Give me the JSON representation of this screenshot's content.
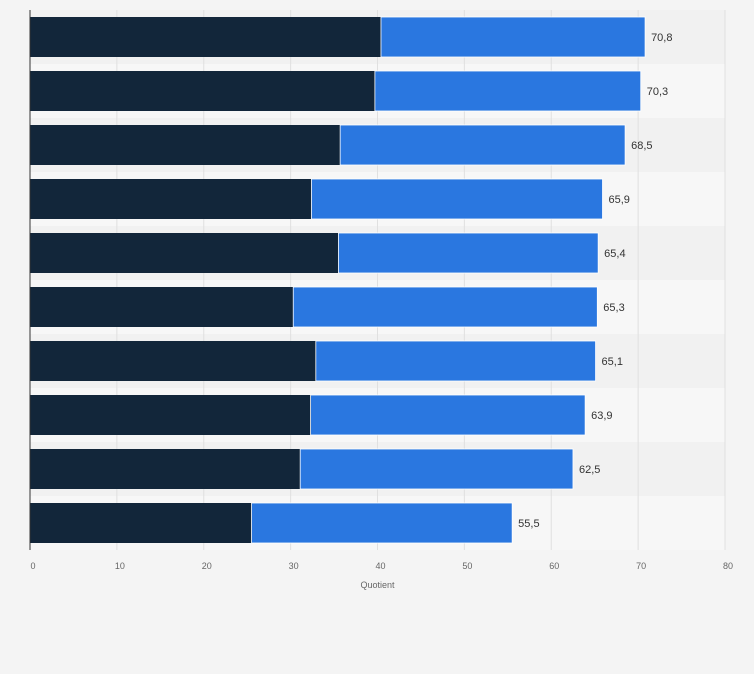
{
  "chart_data": {
    "type": "bar",
    "orientation": "horizontal",
    "stacked": true,
    "xlabel": "Quotient",
    "xlim": [
      0,
      80
    ],
    "xticks": [
      0,
      10,
      20,
      30,
      40,
      50,
      60,
      70,
      80
    ],
    "xtick_labels": [
      "0",
      "10",
      "20",
      "30",
      "40",
      "50",
      "60",
      "70",
      "80"
    ],
    "series": [
      {
        "values": [
          40.4,
          39.7,
          35.7,
          32.4,
          35.5,
          30.3,
          32.9,
          32.3,
          31.1,
          25.5
        ],
        "color": "#12263a"
      },
      {
        "values": [
          30.4,
          30.6,
          32.8,
          33.5,
          29.9,
          35.0,
          32.2,
          31.6,
          31.4,
          30.0
        ],
        "color": "#2a77e0"
      }
    ],
    "totals": [
      70.8,
      70.3,
      68.5,
      65.9,
      65.4,
      65.3,
      65.1,
      63.9,
      62.5,
      55.5
    ],
    "total_labels": [
      "70,8",
      "70,3",
      "68,5",
      "65,9",
      "65,4",
      "65,3",
      "65,1",
      "63,9",
      "62,5",
      "55,5"
    ],
    "grid": true,
    "legend": "none"
  }
}
